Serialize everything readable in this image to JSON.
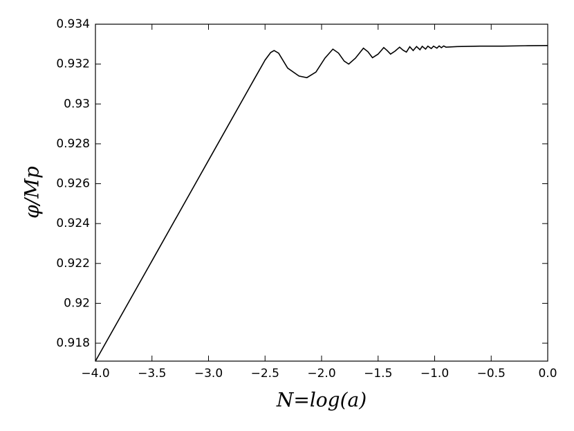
{
  "chart_data": {
    "type": "line",
    "xlabel": "N=log(a)",
    "ylabel": "φ/Mp",
    "x": [
      -4,
      -3.5,
      -3,
      -2.6,
      -2.5,
      -2.45,
      -2.42,
      -2.38,
      -2.3,
      -2.2,
      -2.13,
      -2.05,
      -1.97,
      -1.9,
      -1.85,
      -1.8,
      -1.76,
      -1.7,
      -1.63,
      -1.59,
      -1.55,
      -1.5,
      -1.45,
      -1.42,
      -1.39,
      -1.35,
      -1.31,
      -1.28,
      -1.25,
      -1.22,
      -1.19,
      -1.16,
      -1.13,
      -1.11,
      -1.08,
      -1.06,
      -1.03,
      -1.01,
      -0.98,
      -0.96,
      -0.94,
      -0.92,
      -0.9,
      -0.8,
      -0.6,
      -0.4,
      -0.2,
      0
    ],
    "series": [
      {
        "color": "#000000",
        "values": [
          0.9171,
          0.92213,
          0.92717,
          0.9312,
          0.9322,
          0.93258,
          0.93268,
          0.93255,
          0.9318,
          0.9314,
          0.93132,
          0.9316,
          0.9323,
          0.93275,
          0.93255,
          0.93215,
          0.932,
          0.9323,
          0.9328,
          0.93262,
          0.93232,
          0.9325,
          0.93283,
          0.93268,
          0.9325,
          0.93265,
          0.93285,
          0.9327,
          0.9326,
          0.93287,
          0.93268,
          0.93288,
          0.93272,
          0.93289,
          0.93275,
          0.9329,
          0.93278,
          0.9329,
          0.9328,
          0.93291,
          0.93282,
          0.93291,
          0.93285,
          0.93288,
          0.9329,
          0.9329,
          0.93292,
          0.93293
        ]
      }
    ],
    "xlim": [
      -4,
      0
    ],
    "ylim": [
      0.9171,
      0.934
    ],
    "xticks": [
      {
        "value": -4,
        "label": "−4.0"
      },
      {
        "value": -3.5,
        "label": "−3.5"
      },
      {
        "value": -3,
        "label": "−3.0"
      },
      {
        "value": -2.5,
        "label": "−2.5"
      },
      {
        "value": -2,
        "label": "−2.0"
      },
      {
        "value": -1.5,
        "label": "−1.5"
      },
      {
        "value": -1,
        "label": "−1.0"
      },
      {
        "value": -0.5,
        "label": "−0.5"
      },
      {
        "value": 0,
        "label": "0.0"
      }
    ],
    "yticks": [
      0.918,
      0.92,
      0.922,
      0.924,
      0.926,
      0.928,
      0.93,
      0.932,
      0.934
    ]
  }
}
